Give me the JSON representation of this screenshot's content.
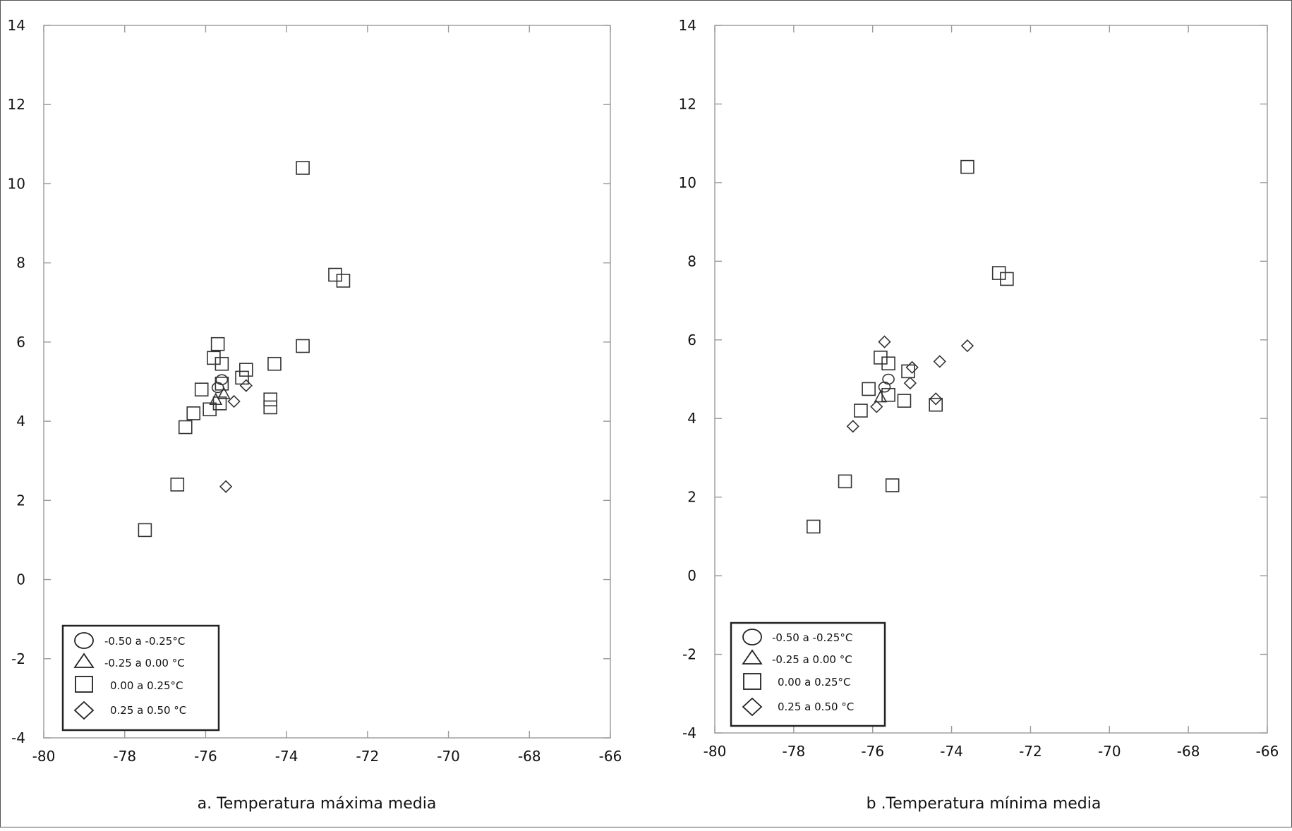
{
  "panels": [
    {
      "caption": "a. Temperatura máxima media",
      "x_ticks": [
        "-80",
        "-78",
        "-76",
        "-74",
        "-72",
        "-70",
        "-68",
        "-66"
      ],
      "y_ticks": [
        "14",
        "12",
        "10",
        "8",
        "6",
        "4",
        "2",
        "0",
        "-2",
        "-4"
      ],
      "legend": [
        {
          "shape": "circle",
          "label": "-0.50 a -0.25°C"
        },
        {
          "shape": "triangle",
          "label": "-0.25 a 0.00 °C"
        },
        {
          "shape": "square",
          "label": "0.00 a 0.25°C"
        },
        {
          "shape": "diamond",
          "label": "0.25 a 0.50 °C"
        }
      ]
    },
    {
      "caption": "b .Temperatura mínima media",
      "x_ticks": [
        "-80",
        "-78",
        "-76",
        "-74",
        "-72",
        "-70",
        "-68",
        "-66"
      ],
      "y_ticks": [
        "14",
        "12",
        "10",
        "8",
        "6",
        "4",
        "2",
        "0",
        "-2",
        "-4"
      ],
      "legend": [
        {
          "shape": "circle",
          "label": "-0.50 a -0.25°C"
        },
        {
          "shape": "triangle",
          "label": "-0.25 a 0.00 °C"
        },
        {
          "shape": "square",
          "label": "0.00 a 0.25°C"
        },
        {
          "shape": "diamond",
          "label": "0.25 a 0.50 °C"
        }
      ]
    }
  ],
  "chart_data": [
    {
      "type": "scatter",
      "title": "",
      "caption": "a. Temperatura máxima media",
      "xlim": [
        -80,
        -66
      ],
      "ylim": [
        -4,
        14
      ],
      "grid": false,
      "legend_placement": "bottom-left",
      "points": [
        {
          "lon": -73.6,
          "lat": 10.4,
          "shape": "square"
        },
        {
          "lon": -72.8,
          "lat": 7.7,
          "shape": "square"
        },
        {
          "lon": -72.6,
          "lat": 7.55,
          "shape": "square"
        },
        {
          "lon": -75.7,
          "lat": 5.95,
          "shape": "square"
        },
        {
          "lon": -75.8,
          "lat": 5.6,
          "shape": "square"
        },
        {
          "lon": -75.6,
          "lat": 5.45,
          "shape": "square"
        },
        {
          "lon": -73.6,
          "lat": 5.9,
          "shape": "square"
        },
        {
          "lon": -74.3,
          "lat": 5.45,
          "shape": "square"
        },
        {
          "lon": -75.0,
          "lat": 5.3,
          "shape": "square"
        },
        {
          "lon": -75.1,
          "lat": 5.1,
          "shape": "square"
        },
        {
          "lon": -76.1,
          "lat": 4.8,
          "shape": "square"
        },
        {
          "lon": -74.4,
          "lat": 4.55,
          "shape": "square"
        },
        {
          "lon": -74.4,
          "lat": 4.35,
          "shape": "square"
        },
        {
          "lon": -75.9,
          "lat": 4.3,
          "shape": "square"
        },
        {
          "lon": -76.3,
          "lat": 4.2,
          "shape": "square"
        },
        {
          "lon": -76.5,
          "lat": 3.85,
          "shape": "square"
        },
        {
          "lon": -76.7,
          "lat": 2.4,
          "shape": "square"
        },
        {
          "lon": -77.5,
          "lat": 1.25,
          "shape": "square"
        },
        {
          "lon": -75.6,
          "lat": 5.05,
          "shape": "circle"
        },
        {
          "lon": -75.7,
          "lat": 4.85,
          "shape": "circle"
        },
        {
          "lon": -75.55,
          "lat": 4.7,
          "shape": "triangle"
        },
        {
          "lon": -75.75,
          "lat": 4.55,
          "shape": "triangle"
        },
        {
          "lon": -75.6,
          "lat": 4.95,
          "shape": "square"
        },
        {
          "lon": -75.65,
          "lat": 4.45,
          "shape": "square"
        },
        {
          "lon": -75.0,
          "lat": 4.9,
          "shape": "diamond"
        },
        {
          "lon": -75.3,
          "lat": 4.5,
          "shape": "diamond"
        },
        {
          "lon": -75.5,
          "lat": 2.35,
          "shape": "diamond"
        }
      ]
    },
    {
      "type": "scatter",
      "title": "",
      "caption": "b .Temperatura mínima media",
      "xlim": [
        -80,
        -66
      ],
      "ylim": [
        -4,
        14
      ],
      "grid": false,
      "legend_placement": "bottom-left",
      "points": [
        {
          "lon": -73.6,
          "lat": 10.4,
          "shape": "square"
        },
        {
          "lon": -72.8,
          "lat": 7.7,
          "shape": "square"
        },
        {
          "lon": -72.6,
          "lat": 7.55,
          "shape": "square"
        },
        {
          "lon": -75.8,
          "lat": 5.55,
          "shape": "square"
        },
        {
          "lon": -75.6,
          "lat": 5.4,
          "shape": "square"
        },
        {
          "lon": -75.1,
          "lat": 5.2,
          "shape": "square"
        },
        {
          "lon": -76.1,
          "lat": 4.75,
          "shape": "square"
        },
        {
          "lon": -75.2,
          "lat": 4.45,
          "shape": "square"
        },
        {
          "lon": -74.4,
          "lat": 4.35,
          "shape": "square"
        },
        {
          "lon": -76.3,
          "lat": 4.2,
          "shape": "square"
        },
        {
          "lon": -76.7,
          "lat": 2.4,
          "shape": "square"
        },
        {
          "lon": -75.5,
          "lat": 2.3,
          "shape": "square"
        },
        {
          "lon": -77.5,
          "lat": 1.25,
          "shape": "square"
        },
        {
          "lon": -75.6,
          "lat": 5.0,
          "shape": "circle"
        },
        {
          "lon": -75.7,
          "lat": 4.8,
          "shape": "circle"
        },
        {
          "lon": -75.8,
          "lat": 4.55,
          "shape": "triangle"
        },
        {
          "lon": -75.6,
          "lat": 4.6,
          "shape": "square"
        },
        {
          "lon": -75.7,
          "lat": 5.95,
          "shape": "diamond"
        },
        {
          "lon": -75.0,
          "lat": 5.3,
          "shape": "diamond"
        },
        {
          "lon": -75.05,
          "lat": 4.9,
          "shape": "diamond"
        },
        {
          "lon": -74.3,
          "lat": 5.45,
          "shape": "diamond"
        },
        {
          "lon": -73.6,
          "lat": 5.85,
          "shape": "diamond"
        },
        {
          "lon": -74.4,
          "lat": 4.5,
          "shape": "diamond"
        },
        {
          "lon": -76.5,
          "lat": 3.8,
          "shape": "diamond"
        },
        {
          "lon": -75.9,
          "lat": 4.3,
          "shape": "diamond"
        }
      ]
    }
  ],
  "colors": {
    "marker_stroke": "#333333",
    "boundary_stroke": "#b9b9b9",
    "axis": "#9a9a9a",
    "text": "#111111"
  }
}
